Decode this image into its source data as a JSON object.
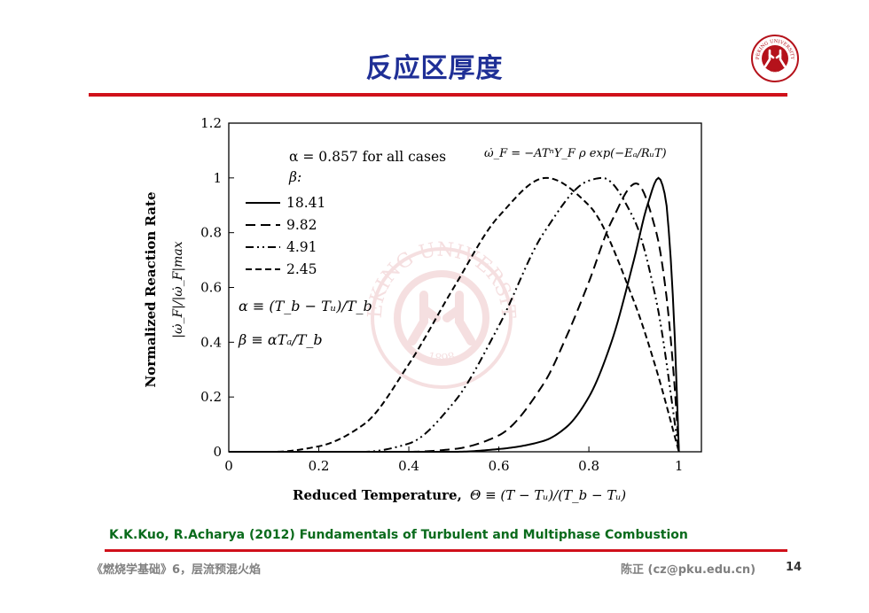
{
  "slide": {
    "title": "反应区厚度",
    "citation": "K.K.Kuo, R.Acharya (2012) Fundamentals of Turbulent and Multiphase Combustion",
    "footer_left": "《燃烧学基础》6，层流预混火焰",
    "footer_right": "陈正 (cz@pku.edu.cn)",
    "page_number": "14",
    "logo_text": "PEKING UNIVERSITY",
    "logo_year": "1898",
    "watermark_text": "PEKING UNIVERSITY",
    "watermark_year": "1898"
  },
  "colors": {
    "title": "#1f2f96",
    "rule": "#d0101a",
    "citation": "#0a6b1c",
    "footer": "#808080",
    "logo": "#b5121b",
    "curves": "#000000"
  },
  "chart_data": {
    "type": "line",
    "title": "",
    "xlabel_prefix": "Reduced Temperature, ",
    "xlabel_math": "Θ ≡ (T − Tᵤ)/(T_b − Tᵤ)",
    "ylabel": "Normalized Reaction Rate",
    "ylabel_math": "|ω̇_F|/|ω̇_F|max",
    "xlim": [
      0,
      1.05
    ],
    "ylim": [
      0,
      1.2
    ],
    "xticks": [
      0,
      0.2,
      0.4,
      0.6,
      0.8,
      1
    ],
    "xtick_labels": [
      "0",
      "0.2",
      "0.4",
      "0.6",
      "0.8",
      "1"
    ],
    "yticks": [
      0,
      0.2,
      0.4,
      0.6,
      0.8,
      1,
      1.2
    ],
    "ytick_labels": [
      "0",
      "0.2",
      "0.4",
      "0.6",
      "0.8",
      "1",
      "1.2"
    ],
    "grid": false,
    "legend_position": "top-left",
    "annotations": {
      "alpha_note": "α = 0.857 for all cases",
      "beta_label": "β:",
      "rate_eq": "ω̇_F = −ATⁿY_F ρ exp(−Eₐ/RᵤT)",
      "alpha_def": "α ≡ (T_b − Tᵤ)/T_b",
      "beta_def": "β ≡ αTₐ/T_b"
    },
    "series": [
      {
        "name": "18.41",
        "style": "solid",
        "beta": 18.41,
        "peak_x": 0.955,
        "x": [
          0.0,
          0.5,
          0.6,
          0.7,
          0.75,
          0.8,
          0.85,
          0.9,
          0.93,
          0.955,
          0.97,
          0.98,
          0.99,
          1.0
        ],
        "y": [
          0.0,
          0.0,
          0.01,
          0.04,
          0.09,
          0.2,
          0.4,
          0.7,
          0.9,
          1.0,
          0.93,
          0.75,
          0.45,
          0.0
        ]
      },
      {
        "name": "9.82",
        "style": "dashed",
        "beta": 9.82,
        "peak_x": 0.905,
        "x": [
          0.0,
          0.4,
          0.5,
          0.6,
          0.7,
          0.75,
          0.8,
          0.85,
          0.905,
          0.95,
          0.97,
          0.99,
          1.0
        ],
        "y": [
          0.0,
          0.0,
          0.01,
          0.06,
          0.25,
          0.42,
          0.62,
          0.84,
          0.98,
          0.8,
          0.6,
          0.25,
          0.0
        ]
      },
      {
        "name": "4.91",
        "style": "dashdotdot",
        "beta": 4.91,
        "peak_x": 0.83,
        "x": [
          0.0,
          0.3,
          0.4,
          0.5,
          0.6,
          0.7,
          0.8,
          0.83,
          0.9,
          0.95,
          1.0
        ],
        "y": [
          0.0,
          0.0,
          0.03,
          0.18,
          0.46,
          0.8,
          0.99,
          1.0,
          0.85,
          0.55,
          0.0
        ]
      },
      {
        "name": "2.45",
        "style": "longdash",
        "beta": 2.45,
        "peak_x": 0.705,
        "x": [
          0.0,
          0.1,
          0.2,
          0.3,
          0.4,
          0.5,
          0.6,
          0.705,
          0.8,
          0.9,
          0.95,
          1.0
        ],
        "y": [
          0.0,
          0.0,
          0.02,
          0.1,
          0.32,
          0.6,
          0.86,
          1.0,
          0.9,
          0.55,
          0.3,
          0.0
        ]
      }
    ]
  }
}
